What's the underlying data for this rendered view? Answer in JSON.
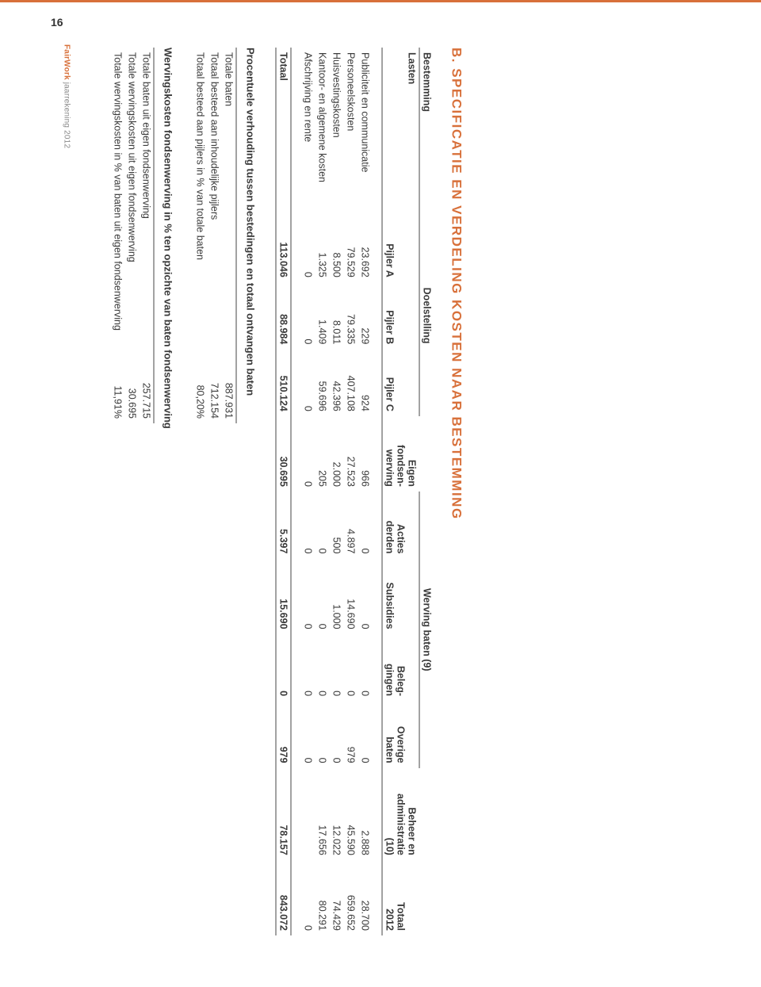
{
  "page": {
    "number": "16",
    "brand": "FairWork",
    "meta_rest": " jaarrekening 2012"
  },
  "section_title": "B. SPECIFICATIE EN VERDELING KOSTEN NAAR BESTEMMING",
  "table": {
    "corner_label": "Bestemming",
    "row_header_label": "Lasten",
    "groups": {
      "doelstelling": "Doelstelling",
      "werving_baten": "Werving baten (9)"
    },
    "columns": {
      "pijler_a": "Pijler A",
      "pijler_b": "Pijler B",
      "pijler_c": "Pijler C",
      "eigen_fw_l1": "Eigen",
      "eigen_fw_l2": "fondsen-",
      "eigen_fw_l3": "werving",
      "acties_l1": "Acties",
      "acties_l2": "derden",
      "subsidies": "Subsidies",
      "beleg_l1": "Beleg-",
      "beleg_l2": "gingen",
      "overige_l1": "Overige",
      "overige_l2": "baten",
      "beheer_l1": "Beheer en",
      "beheer_l2": "administratie",
      "beheer_l3": "(10)",
      "totaal_l1": "Totaal",
      "totaal_l2": "2012"
    },
    "rows": [
      {
        "label": "Publiciteit en communicatie",
        "c": [
          "23.692",
          "229",
          "924",
          "966",
          "0",
          "0",
          "0",
          "0",
          "2.888",
          "28.700"
        ]
      },
      {
        "label": "Personeelskosten",
        "c": [
          "79.529",
          "79.335",
          "407.108",
          "27.523",
          "4.897",
          "14.690",
          "0",
          "979",
          "45.590",
          "659.652"
        ]
      },
      {
        "label": "Huisvestingskosten",
        "c": [
          "8.500",
          "8.011",
          "42.396",
          "2.000",
          "500",
          "1.000",
          "0",
          "0",
          "12.022",
          "74.429"
        ]
      },
      {
        "label": "Kantoor- en algemene kosten",
        "c": [
          "1.325",
          "1.409",
          "59.696",
          "205",
          "0",
          "0",
          "0",
          "0",
          "17.656",
          "80.291"
        ]
      },
      {
        "label": "Afschrijving en rente",
        "c": [
          "0",
          "0",
          "0",
          "0",
          "0",
          "0",
          "0",
          "0",
          "",
          "0"
        ]
      }
    ],
    "totals": {
      "label": "Totaal",
      "c": [
        "113.046",
        "88.984",
        "510.124",
        "30.695",
        "5.397",
        "15.690",
        "0",
        "979",
        "78.157",
        "843.072"
      ]
    }
  },
  "ratio_section": {
    "heading": "Procentuele verhouding tussen bestedingen en totaal ontvangen baten",
    "rows": [
      {
        "label": "Totale baten",
        "value": "887.931"
      },
      {
        "label": "Totaal besteed aan inhoudelijke pijlers",
        "value": "712.154"
      },
      {
        "label": "Totaal besteed aan pijlers in % van totale baten",
        "value": "80,20%"
      }
    ]
  },
  "werving_section": {
    "heading": "Wervingskosten fondsenwerving in % ten opzichte van baten fondsenwerving",
    "rows": [
      {
        "label": "Totale baten uit eigen fondsenwerving",
        "value": "257.715"
      },
      {
        "label": "Totale wervingskosten uit eigen fondsenwerving",
        "value": "30.695"
      },
      {
        "label": "Totale wervingskosten in % van baten uit eigen fondsenwerving",
        "value": "11,91%"
      }
    ]
  },
  "colors": {
    "accent": "#d8703a",
    "text": "#333333",
    "muted": "#888888",
    "rule": "#444444",
    "background": "#ffffff"
  }
}
